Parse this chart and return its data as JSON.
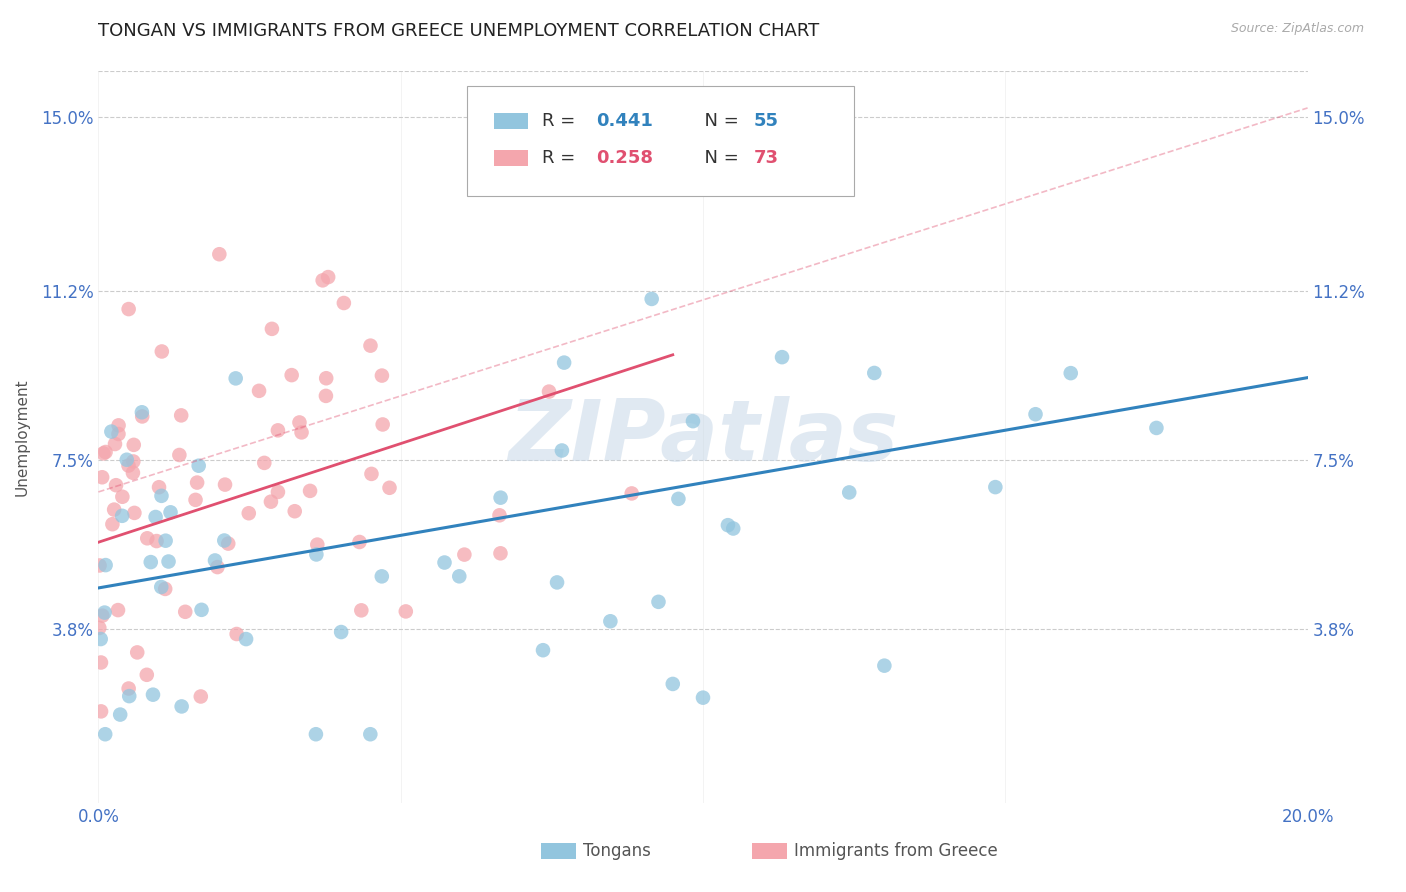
{
  "title": "TONGAN VS IMMIGRANTS FROM GREECE UNEMPLOYMENT CORRELATION CHART",
  "source": "Source: ZipAtlas.com",
  "ylabel": "Unemployment",
  "watermark": "ZIPatlas",
  "xlim": [
    0.0,
    0.2
  ],
  "ylim": [
    0.0,
    0.16
  ],
  "yticks": [
    0.038,
    0.075,
    0.112,
    0.15
  ],
  "ytick_labels": [
    "3.8%",
    "7.5%",
    "11.2%",
    "15.0%"
  ],
  "xticks": [
    0.0,
    0.05,
    0.1,
    0.15,
    0.2
  ],
  "xtick_labels": [
    "0.0%",
    "",
    "",
    "",
    "20.0%"
  ],
  "legend_blue_r": "0.441",
  "legend_blue_n": "55",
  "legend_pink_r": "0.258",
  "legend_pink_n": "73",
  "legend_label_blue": "Tongans",
  "legend_label_pink": "Immigrants from Greece",
  "blue_color": "#92c5de",
  "pink_color": "#f4a6ad",
  "trendline_blue_color": "#3182bd",
  "trendline_pink_color": "#e05070",
  "blue_trend_y_start": 0.047,
  "blue_trend_y_end": 0.093,
  "pink_trend_y_start": 0.057,
  "pink_trend_y_end": 0.098,
  "pink_dash_trend_y_start": 0.068,
  "pink_dash_trend_y_end": 0.152,
  "background_color": "#ffffff",
  "grid_color": "#cccccc",
  "axis_color": "#4472c4",
  "title_fontsize": 13,
  "label_fontsize": 11,
  "tick_fontsize": 12,
  "legend_fontsize": 13
}
